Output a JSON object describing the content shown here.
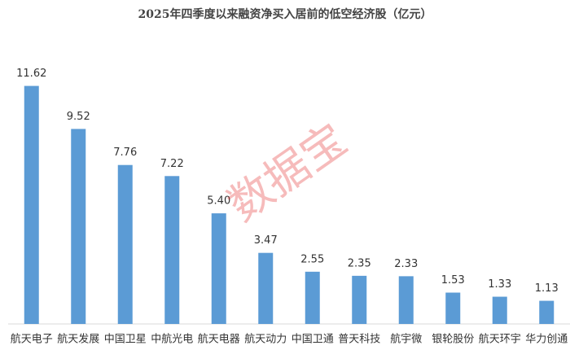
{
  "chart_data": {
    "type": "bar",
    "title": "2025年四季度以来融资净买入居前的低空经济股（亿元）",
    "categories": [
      "航天电子",
      "航天发展",
      "中国卫星",
      "中航光电",
      "航天电器",
      "航天动力",
      "中国卫通",
      "普天科技",
      "航宇微",
      "银轮股份",
      "航天环宇",
      "华力创通"
    ],
    "values": [
      11.62,
      9.52,
      7.76,
      7.22,
      5.4,
      3.47,
      2.55,
      2.35,
      2.33,
      1.53,
      1.33,
      1.13
    ],
    "value_labels": [
      "11.62",
      "9.52",
      "7.76",
      "7.22",
      "5.40",
      "3.47",
      "2.55",
      "2.35",
      "2.33",
      "1.53",
      "1.33",
      "1.13"
    ],
    "color": "#5b9bd5",
    "ylim": [
      0,
      12
    ],
    "watermark": "数据宝"
  }
}
